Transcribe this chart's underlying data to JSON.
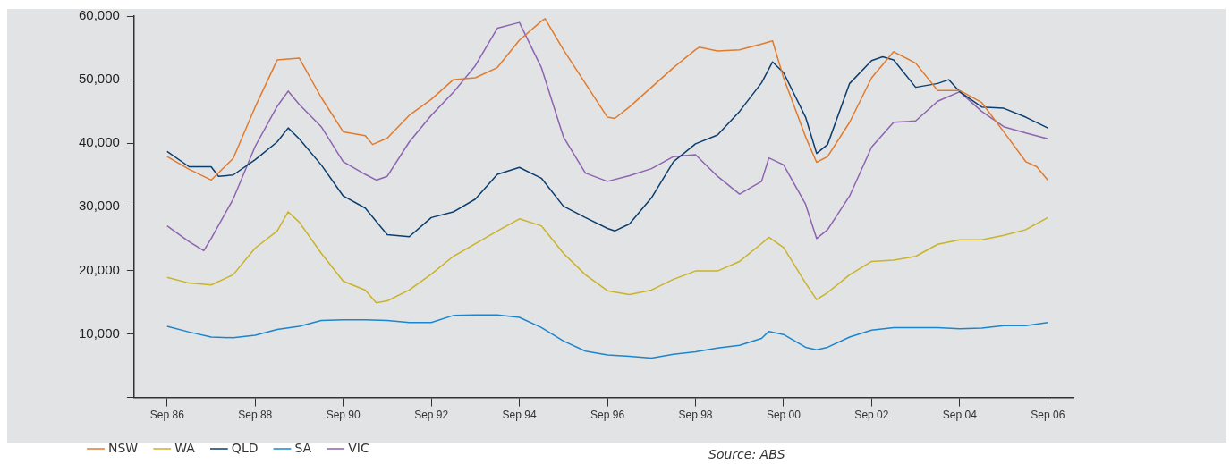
{
  "chart_data": {
    "type": "line",
    "xlim": [
      "1985-12",
      "2007-04"
    ],
    "xticks": [
      {
        "value": "1986-09",
        "label": "Sep 86"
      },
      {
        "value": "1988-09",
        "label": "Sep 88"
      },
      {
        "value": "1990-09",
        "label": "Sep 90"
      },
      {
        "value": "1992-09",
        "label": "Sep 92"
      },
      {
        "value": "1994-09",
        "label": "Sep 94"
      },
      {
        "value": "1996-09",
        "label": "Sep 96"
      },
      {
        "value": "1998-09",
        "label": "Sep 98"
      },
      {
        "value": "2000-09",
        "label": "Sep 00"
      },
      {
        "value": "2002-09",
        "label": "Sep 02"
      },
      {
        "value": "2004-09",
        "label": "Sep 04"
      },
      {
        "value": "2006-09",
        "label": "Sep 06"
      }
    ],
    "ylim": [
      0,
      60000
    ],
    "yticks": [
      {
        "value": 0,
        "label": null
      },
      {
        "value": 10000,
        "label": "10,000"
      },
      {
        "value": 20000,
        "label": "20,000"
      },
      {
        "value": 30000,
        "label": "30,000"
      },
      {
        "value": 40000,
        "label": "40,000"
      },
      {
        "value": 50000,
        "label": "50,000"
      },
      {
        "value": 60000,
        "label": "60,000"
      }
    ],
    "legend": "bottom",
    "marker": "none",
    "annotations": [
      "Source: ABS"
    ],
    "series": [
      {
        "name": "NSW",
        "color": "#e07b2e",
        "x": [
          "1986-09",
          "1987-03",
          "1987-09",
          "1988-03",
          "1988-09",
          "1989-03",
          "1989-09",
          "1990-03",
          "1990-09",
          "1991-03",
          "1991-05",
          "1991-09",
          "1992-03",
          "1992-09",
          "1993-03",
          "1993-09",
          "1994-03",
          "1994-09",
          "1995-03",
          "1995-04",
          "1995-09",
          "1996-03",
          "1996-09",
          "1996-11",
          "1997-03",
          "1997-09",
          "1998-03",
          "1998-09",
          "1998-10",
          "1999-03",
          "1999-09",
          "2000-03",
          "2000-06",
          "2000-09",
          "2001-03",
          "2001-06",
          "2001-09",
          "2002-03",
          "2002-09",
          "2003-03",
          "2003-09",
          "2004-03",
          "2004-09",
          "2005-03",
          "2005-09",
          "2006-03",
          "2006-06",
          "2006-09"
        ],
        "values": [
          37900,
          35900,
          34200,
          37600,
          45700,
          53100,
          53400,
          47200,
          41800,
          41200,
          39800,
          40800,
          44400,
          46900,
          50000,
          50300,
          51900,
          56200,
          59200,
          59600,
          54700,
          49400,
          44100,
          43900,
          45700,
          48800,
          51900,
          54700,
          55100,
          54500,
          54700,
          55600,
          56100,
          50300,
          41000,
          37000,
          37900,
          43300,
          50300,
          54400,
          52600,
          48300,
          48300,
          46400,
          41800,
          37100,
          36300,
          34200
        ]
      },
      {
        "name": "WA",
        "color": "#c9b32a",
        "x": [
          "1986-09",
          "1987-03",
          "1987-09",
          "1988-03",
          "1988-09",
          "1989-03",
          "1989-06",
          "1989-09",
          "1990-03",
          "1990-09",
          "1991-03",
          "1991-06",
          "1991-09",
          "1992-03",
          "1992-09",
          "1993-03",
          "1993-09",
          "1994-03",
          "1994-09",
          "1995-03",
          "1995-09",
          "1996-03",
          "1996-09",
          "1997-03",
          "1997-09",
          "1998-03",
          "1998-09",
          "1999-03",
          "1999-09",
          "2000-03",
          "2000-05",
          "2000-09",
          "2001-03",
          "2001-06",
          "2001-09",
          "2002-03",
          "2002-09",
          "2003-03",
          "2003-09",
          "2004-03",
          "2004-09",
          "2005-03",
          "2005-09",
          "2006-03",
          "2006-09"
        ],
        "values": [
          18900,
          18000,
          17700,
          19300,
          23500,
          26200,
          29200,
          27600,
          22700,
          18300,
          16900,
          14900,
          15200,
          16900,
          19400,
          22200,
          24200,
          26200,
          28100,
          27000,
          22700,
          19300,
          16800,
          16200,
          16900,
          18600,
          19900,
          19900,
          21400,
          24200,
          25200,
          23600,
          18000,
          15400,
          16500,
          19300,
          21400,
          21600,
          22200,
          24100,
          24800,
          24800,
          25500,
          26400,
          28300
        ]
      },
      {
        "name": "QLD",
        "color": "#0b3e6f",
        "x": [
          "1986-09",
          "1987-03",
          "1987-09",
          "1987-11",
          "1988-03",
          "1988-09",
          "1989-03",
          "1989-06",
          "1989-09",
          "1990-03",
          "1990-09",
          "1991-03",
          "1991-09",
          "1992-03",
          "1992-09",
          "1993-03",
          "1993-09",
          "1994-03",
          "1994-09",
          "1995-03",
          "1995-09",
          "1996-03",
          "1996-09",
          "1996-11",
          "1997-03",
          "1997-09",
          "1998-03",
          "1998-09",
          "1999-03",
          "1999-09",
          "2000-03",
          "2000-06",
          "2000-09",
          "2001-03",
          "2001-06",
          "2001-09",
          "2002-03",
          "2002-09",
          "2002-12",
          "2003-03",
          "2003-09",
          "2004-03",
          "2004-06",
          "2004-09",
          "2005-03",
          "2005-09",
          "2006-03",
          "2006-09"
        ],
        "values": [
          38700,
          36300,
          36300,
          34800,
          35000,
          37400,
          40200,
          42400,
          40700,
          36600,
          31700,
          29800,
          25600,
          25300,
          28300,
          29200,
          31200,
          35100,
          36200,
          34500,
          30100,
          28300,
          26600,
          26200,
          27300,
          31400,
          37100,
          39900,
          41300,
          45000,
          49500,
          52800,
          51100,
          44100,
          38400,
          39800,
          49400,
          53000,
          53600,
          53100,
          48800,
          49400,
          50000,
          48100,
          45700,
          45500,
          44100,
          42400
        ]
      },
      {
        "name": "SA",
        "color": "#1a86cf",
        "x": [
          "1986-09",
          "1987-03",
          "1987-09",
          "1988-03",
          "1988-09",
          "1989-03",
          "1989-09",
          "1990-03",
          "1990-09",
          "1991-03",
          "1991-09",
          "1992-03",
          "1992-09",
          "1993-03",
          "1993-09",
          "1994-03",
          "1994-09",
          "1995-03",
          "1995-09",
          "1996-03",
          "1996-09",
          "1997-03",
          "1997-09",
          "1998-03",
          "1998-09",
          "1999-03",
          "1999-09",
          "2000-03",
          "2000-05",
          "2000-09",
          "2001-03",
          "2001-06",
          "2001-09",
          "2002-03",
          "2002-09",
          "2003-03",
          "2003-09",
          "2004-03",
          "2004-09",
          "2005-03",
          "2005-09",
          "2006-03",
          "2006-09"
        ],
        "values": [
          11200,
          10300,
          9500,
          9400,
          9800,
          10700,
          11200,
          12100,
          12200,
          12200,
          12100,
          11800,
          11800,
          12900,
          13000,
          13000,
          12600,
          11000,
          8900,
          7300,
          6700,
          6500,
          6200,
          6800,
          7200,
          7800,
          8200,
          9300,
          10400,
          9900,
          7900,
          7500,
          7900,
          9500,
          10600,
          11000,
          11000,
          11000,
          10800,
          10900,
          11300,
          11300,
          11800
        ]
      },
      {
        "name": "VIC",
        "color": "#8e63b0",
        "x": [
          "1986-09",
          "1987-03",
          "1987-07",
          "1987-09",
          "1988-03",
          "1988-09",
          "1989-03",
          "1989-06",
          "1989-09",
          "1990-03",
          "1990-09",
          "1991-03",
          "1991-06",
          "1991-09",
          "1992-03",
          "1992-09",
          "1993-03",
          "1993-09",
          "1994-03",
          "1994-09",
          "1995-03",
          "1995-09",
          "1996-03",
          "1996-09",
          "1997-03",
          "1997-09",
          "1998-03",
          "1998-09",
          "1999-03",
          "1999-09",
          "2000-03",
          "2000-05",
          "2000-09",
          "2001-03",
          "2001-06",
          "2001-09",
          "2002-03",
          "2002-09",
          "2003-03",
          "2003-09",
          "2004-03",
          "2004-09",
          "2005-03",
          "2005-09",
          "2006-03",
          "2006-09"
        ],
        "values": [
          27000,
          24500,
          23100,
          25000,
          31200,
          39500,
          45800,
          48200,
          46100,
          42600,
          37100,
          35100,
          34200,
          34800,
          40200,
          44400,
          48000,
          52200,
          58100,
          59000,
          51900,
          41000,
          35300,
          34000,
          34900,
          36000,
          37900,
          38200,
          34800,
          32000,
          34000,
          37700,
          36600,
          30400,
          25000,
          26400,
          31700,
          39400,
          43300,
          43500,
          46600,
          48100,
          45000,
          42600,
          41600,
          40700
        ]
      }
    ]
  }
}
